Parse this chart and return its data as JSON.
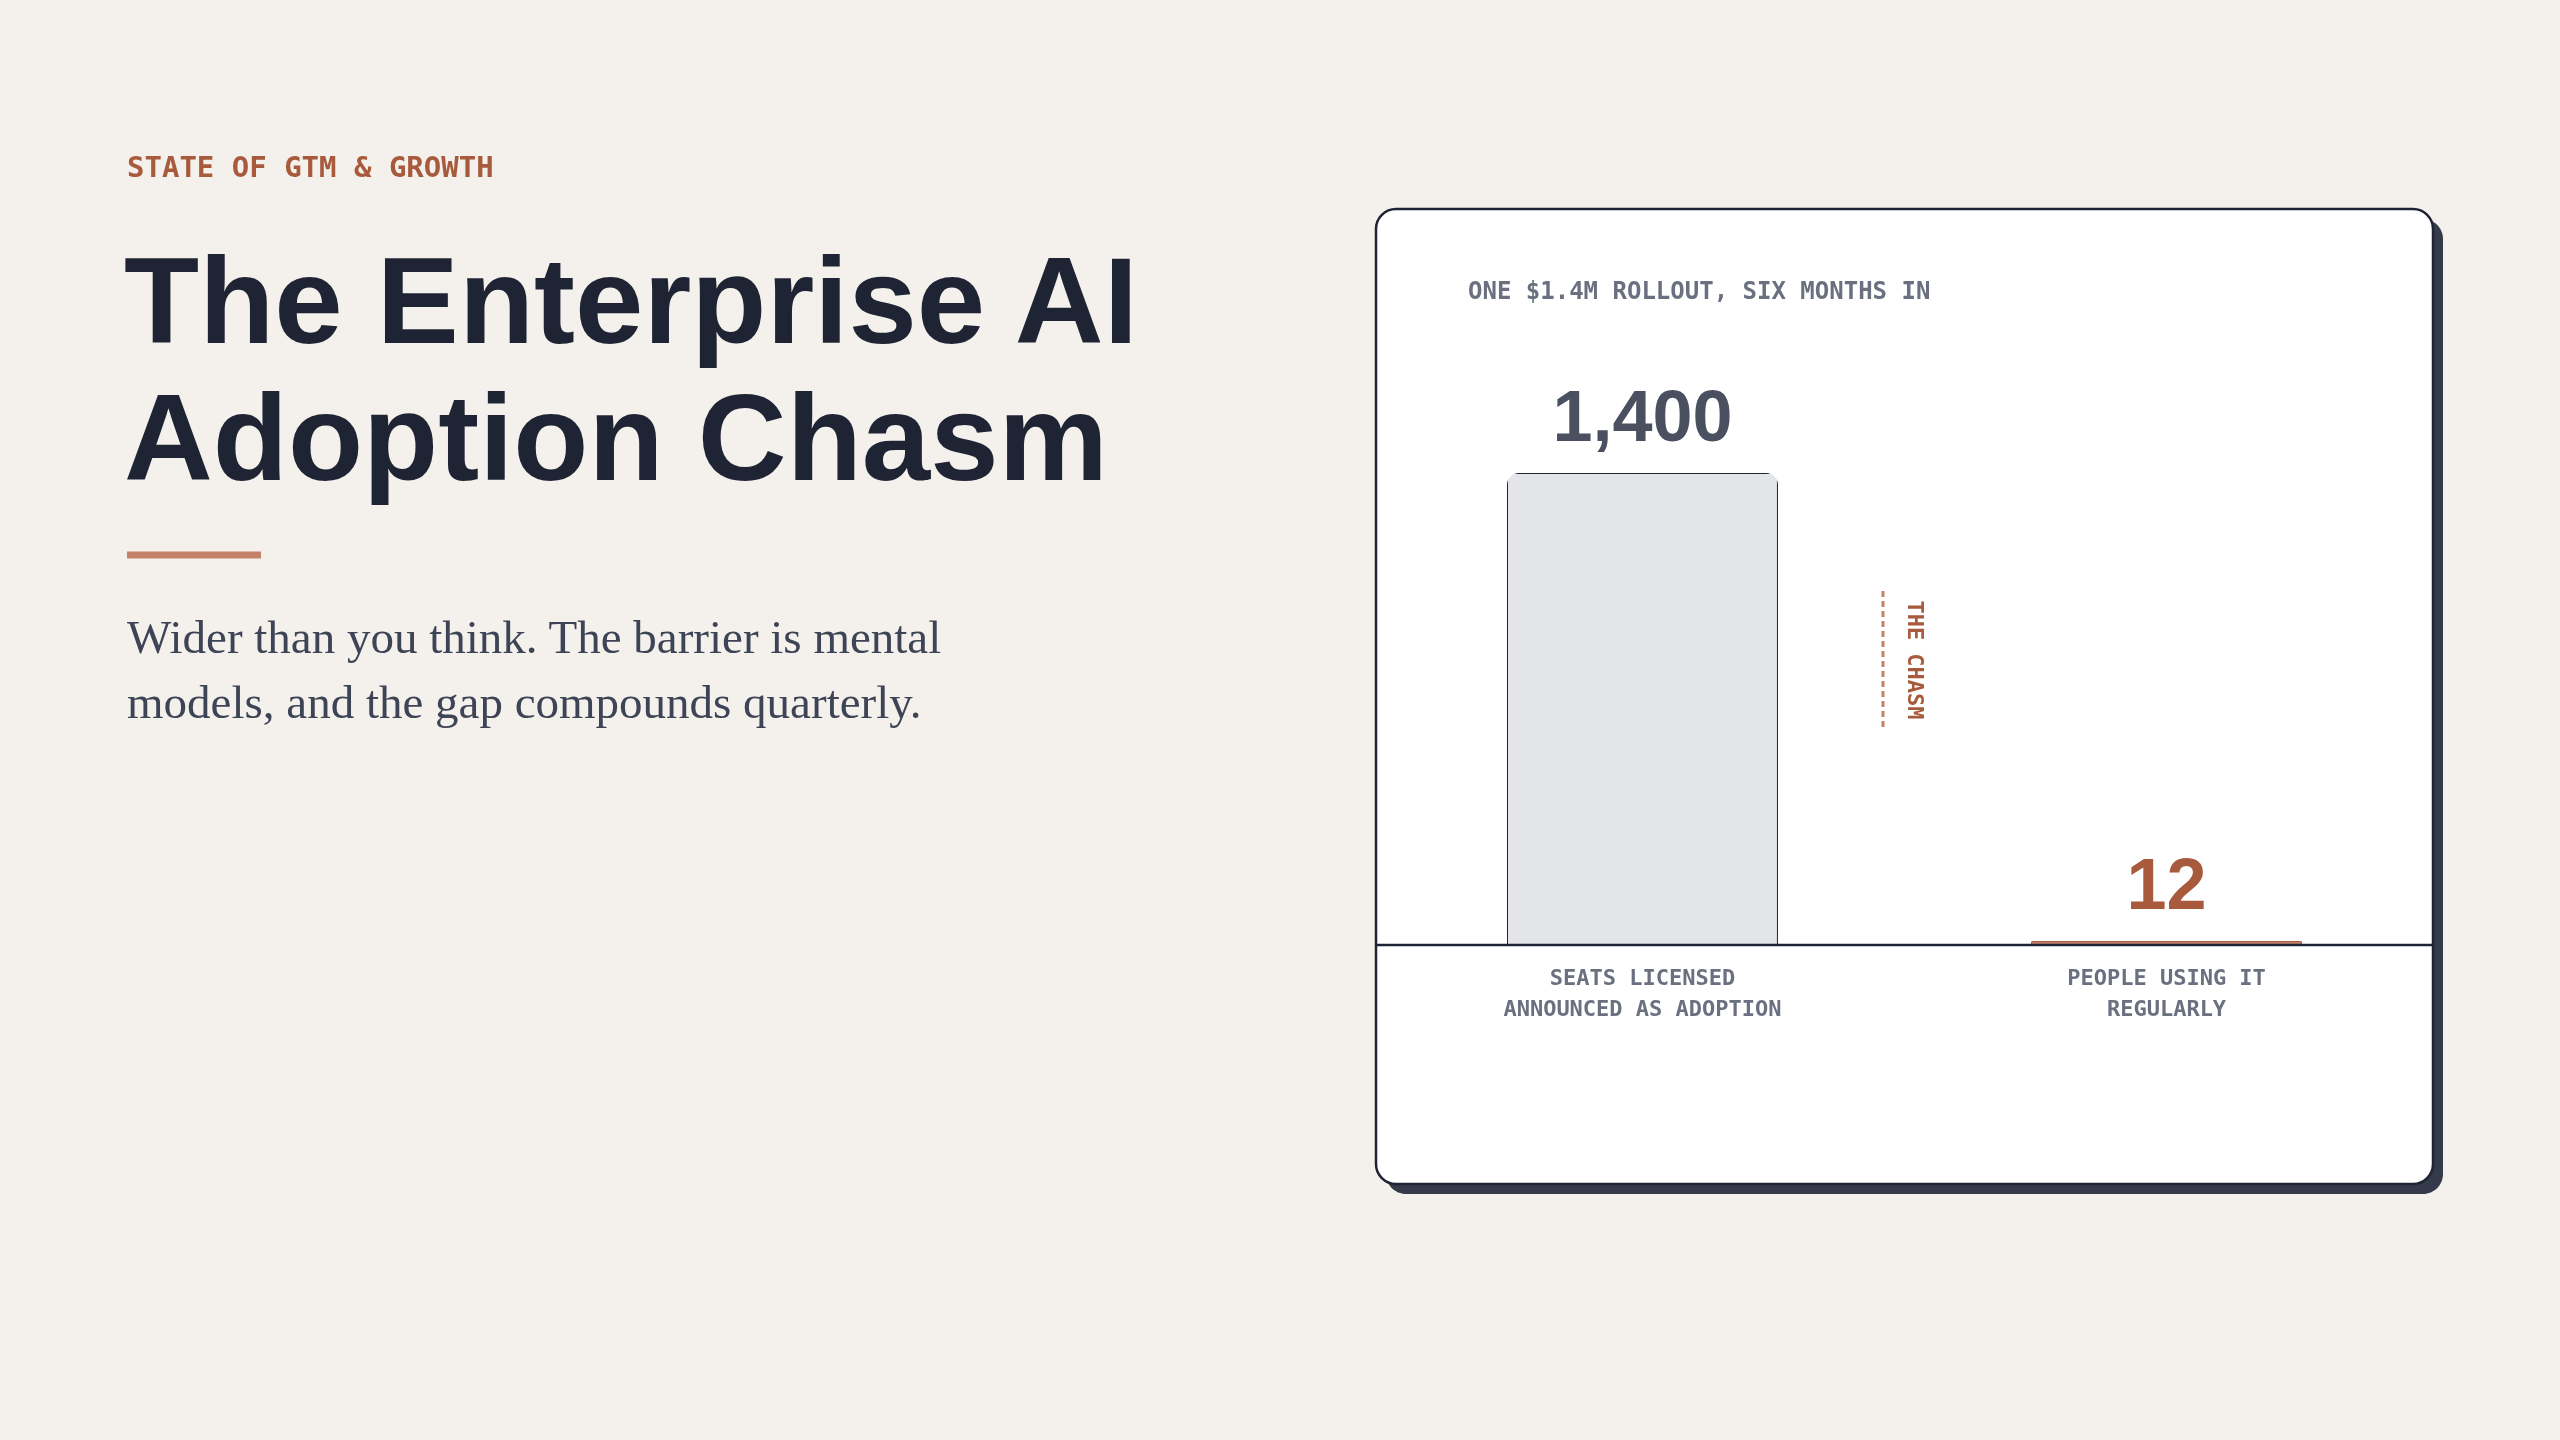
{
  "chart_data": {
    "type": "bar",
    "title": "The Enterprise AI Adoption Chasm",
    "subtitle": "Wider than you think. The barrier is mental models, and the gap compounds quarterly.",
    "annotations": [
      "STATE OF GTM & GROWTH",
      "ONE $1.4M ROLLOUT, SIX MONTHS IN",
      "THE CHASM"
    ],
    "categories": [
      "SEATS LICENSED ANNOUNCED AS ADOPTION",
      "PEOPLE USING IT REGULARLY"
    ],
    "values": [
      1400,
      12
    ],
    "value_labels": [
      "1,400",
      "12"
    ],
    "colors": [
      "#e4e5e8",
      "#c4826a"
    ]
  }
}
